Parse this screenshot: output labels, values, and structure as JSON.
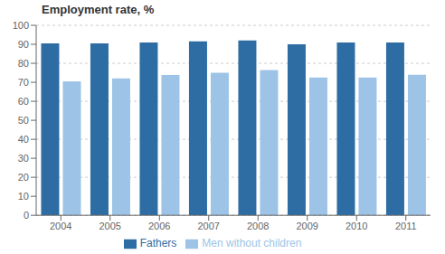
{
  "chart_data": {
    "type": "bar",
    "title": "Employment rate, %",
    "categories": [
      "2004",
      "2005",
      "2006",
      "2007",
      "2008",
      "2009",
      "2010",
      "2011"
    ],
    "series": [
      {
        "name": "Fathers",
        "color": "#2E6DA4",
        "values": [
          90.5,
          90.5,
          91.0,
          91.5,
          92.0,
          90.0,
          91.0,
          91.0
        ]
      },
      {
        "name": "Men without children",
        "color": "#9DC3E6",
        "values": [
          70.5,
          72.0,
          73.8,
          75.0,
          76.5,
          72.5,
          72.5,
          74.0
        ]
      }
    ],
    "ylim": [
      0,
      100
    ],
    "yticks": [
      0,
      10,
      20,
      30,
      40,
      50,
      60,
      70,
      80,
      90,
      100
    ],
    "grid": true,
    "legend": "bottom"
  }
}
